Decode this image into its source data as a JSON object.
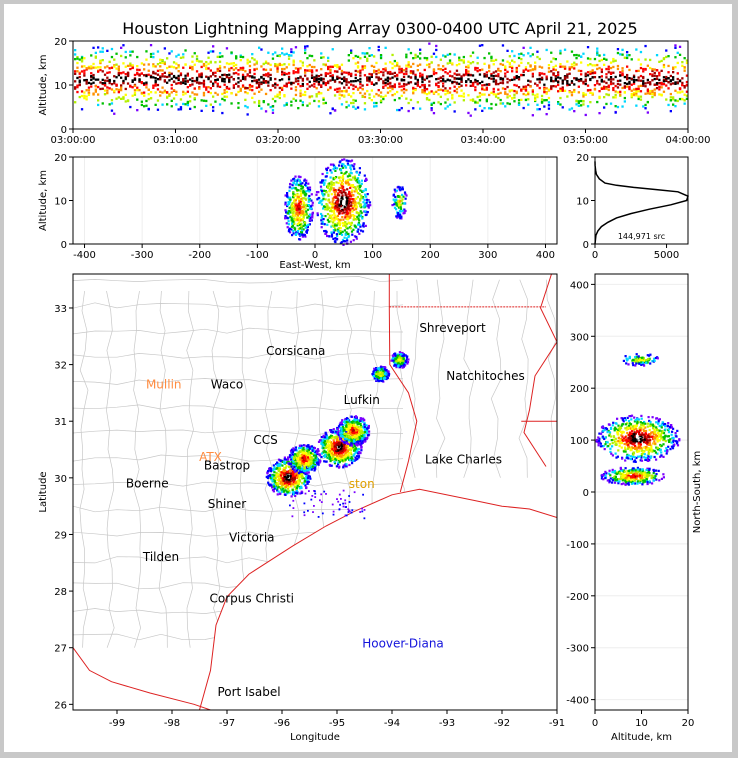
{
  "title": "Houston Lightning Mapping Array 0300-0400 UTC April 21, 2025",
  "colors": {
    "density_scale": [
      "#7a00ff",
      "#0000ff",
      "#00d7ff",
      "#00c000",
      "#b4f000",
      "#ffff00",
      "#ff9000",
      "#ff0000",
      "#a00000",
      "#000000",
      "#ffffff"
    ],
    "state_borders": "#dd2222",
    "coastline": "#dd2222",
    "county_lines": "#c8c8c8",
    "network_station_label": "#ff8c40",
    "offshore_label": "#1414dc"
  },
  "chart_data": [
    {
      "id": "time_height",
      "type": "heatmap",
      "xlabel": "",
      "ylabel": "Altitude, km",
      "x_ticks": [
        "03:00:00",
        "03:10:00",
        "03:20:00",
        "03:30:00",
        "03:40:00",
        "03:50:00",
        "04:00:00"
      ],
      "xlim": [
        "03:00:00",
        "04:00:00"
      ],
      "y_ticks": [
        0,
        10,
        20
      ],
      "ylim": [
        0,
        20
      ],
      "description_of_values": "continuous source density 03:00–04:00 UTC, core at 9–14 km, extending 2–19 km",
      "core_altitude_km": [
        9,
        14
      ],
      "altitude_extent_km": [
        2,
        19
      ]
    },
    {
      "id": "ew_height",
      "type": "heatmap",
      "xlabel": "East-West, km",
      "ylabel": "Altitude, km",
      "x_ticks": [
        -400,
        -300,
        -200,
        -100,
        0,
        100,
        200,
        300,
        400
      ],
      "xlim": [
        -420,
        420
      ],
      "y_ticks": [
        0,
        10,
        20
      ],
      "ylim": [
        0,
        20
      ],
      "clusters": [
        {
          "x_km": [
            -55,
            -5
          ],
          "z_km": [
            1,
            16
          ],
          "peak": "medium"
        },
        {
          "x_km": [
            0,
            95
          ],
          "z_km": [
            0,
            20
          ],
          "peak": "high",
          "peak_x_km": 40,
          "peak_z_km": 12
        },
        {
          "x_km": [
            132,
            158
          ],
          "z_km": [
            6,
            14
          ],
          "peak": "low"
        }
      ]
    },
    {
      "id": "altitude_histogram",
      "type": "line",
      "xlabel": "",
      "ylabel": "",
      "x_ticks": [
        0,
        5000
      ],
      "xlim": [
        0,
        6500
      ],
      "y_ticks": [
        0,
        10,
        20
      ],
      "ylim": [
        0,
        20
      ],
      "annotation": "144,971 src",
      "x": [
        0,
        60,
        200,
        450,
        900,
        1500,
        2500,
        3800,
        5300,
        6400,
        6500,
        5800,
        4300,
        2700,
        1500,
        700,
        300,
        100,
        40,
        10,
        0
      ],
      "y": [
        0,
        2,
        3,
        4,
        5,
        6,
        7,
        8,
        9,
        10,
        11,
        12,
        12.5,
        13,
        13.5,
        14,
        15,
        16,
        17,
        18,
        19
      ]
    },
    {
      "id": "plan_view",
      "type": "heatmap",
      "xlabel": "Longitude",
      "ylabel": "Latitude",
      "x_ticks": [
        -99,
        -98,
        -97,
        -96,
        -95,
        -94,
        -93,
        -92,
        -91
      ],
      "xlim": [
        -99.8,
        -91
      ],
      "y_ticks": [
        26,
        27,
        28,
        29,
        30,
        31,
        32,
        33
      ],
      "ylim": [
        25.9,
        33.6
      ],
      "clusters": [
        {
          "lon": -95.9,
          "lat": 30.03,
          "peak": "high"
        },
        {
          "lon": -95.62,
          "lat": 30.35,
          "peak": "medium"
        },
        {
          "lon": -94.97,
          "lat": 30.55,
          "peak": "high"
        },
        {
          "lon": -94.72,
          "lat": 30.85,
          "peak": "medium"
        },
        {
          "lon": -93.88,
          "lat": 32.1,
          "peak": "low"
        },
        {
          "lon": -94.23,
          "lat": 31.85,
          "peak": "low"
        }
      ],
      "city_labels": [
        {
          "name": "Shreveport",
          "lon": -92.9,
          "lat": 32.58,
          "kind": "city"
        },
        {
          "name": "Corsicana",
          "lon": -95.75,
          "lat": 32.17,
          "kind": "city"
        },
        {
          "name": "Mullin",
          "lon": -98.15,
          "lat": 31.58,
          "kind": "station"
        },
        {
          "name": "Waco",
          "lon": -97.0,
          "lat": 31.58,
          "kind": "city"
        },
        {
          "name": "Natchitoches",
          "lon": -92.3,
          "lat": 31.73,
          "kind": "city"
        },
        {
          "name": "Lufkin",
          "lon": -94.55,
          "lat": 31.3,
          "kind": "city"
        },
        {
          "name": "CCS",
          "lon": -96.3,
          "lat": 30.6,
          "kind": "city"
        },
        {
          "name": "ATX",
          "lon": -97.3,
          "lat": 30.3,
          "kind": "station"
        },
        {
          "name": "Bastrop",
          "lon": -97.0,
          "lat": 30.15,
          "kind": "city"
        },
        {
          "name": "Lake Charles",
          "lon": -92.7,
          "lat": 30.25,
          "kind": "city"
        },
        {
          "name": "Boerne",
          "lon": -98.45,
          "lat": 29.83,
          "kind": "city"
        },
        {
          "name": "ston",
          "lon": -94.55,
          "lat": 29.82,
          "kind": "partial"
        },
        {
          "name": "Shiner",
          "lon": -97.0,
          "lat": 29.47,
          "kind": "city"
        },
        {
          "name": "Victoria",
          "lon": -96.55,
          "lat": 28.88,
          "kind": "city"
        },
        {
          "name": "Tilden",
          "lon": -98.2,
          "lat": 28.53,
          "kind": "city"
        },
        {
          "name": "Corpus Christi",
          "lon": -96.55,
          "lat": 27.8,
          "kind": "city"
        },
        {
          "name": "Hoover-Diana",
          "lon": -93.8,
          "lat": 27.0,
          "kind": "offshore"
        },
        {
          "name": "Port Isabel",
          "lon": -96.6,
          "lat": 26.15,
          "kind": "city"
        }
      ]
    },
    {
      "id": "ns_height",
      "type": "heatmap",
      "xlabel": "Altitude, km",
      "ylabel": "North-South, km",
      "x_ticks": [
        0,
        10,
        20
      ],
      "xlim": [
        0,
        20
      ],
      "y_ticks": [
        -400,
        -300,
        -200,
        -100,
        0,
        100,
        200,
        300,
        400
      ],
      "ylim": [
        -420,
        420
      ],
      "clusters": [
        {
          "y_km": [
            60,
            150
          ],
          "z_km": [
            0,
            18
          ],
          "peak": "high",
          "peak_y_km": 90,
          "peak_z_km": 11
        },
        {
          "y_km": [
            15,
            50
          ],
          "z_km": [
            1,
            15
          ],
          "peak": "medium"
        },
        {
          "y_km": [
            245,
            268
          ],
          "z_km": [
            5,
            14
          ],
          "peak": "low"
        }
      ]
    }
  ]
}
